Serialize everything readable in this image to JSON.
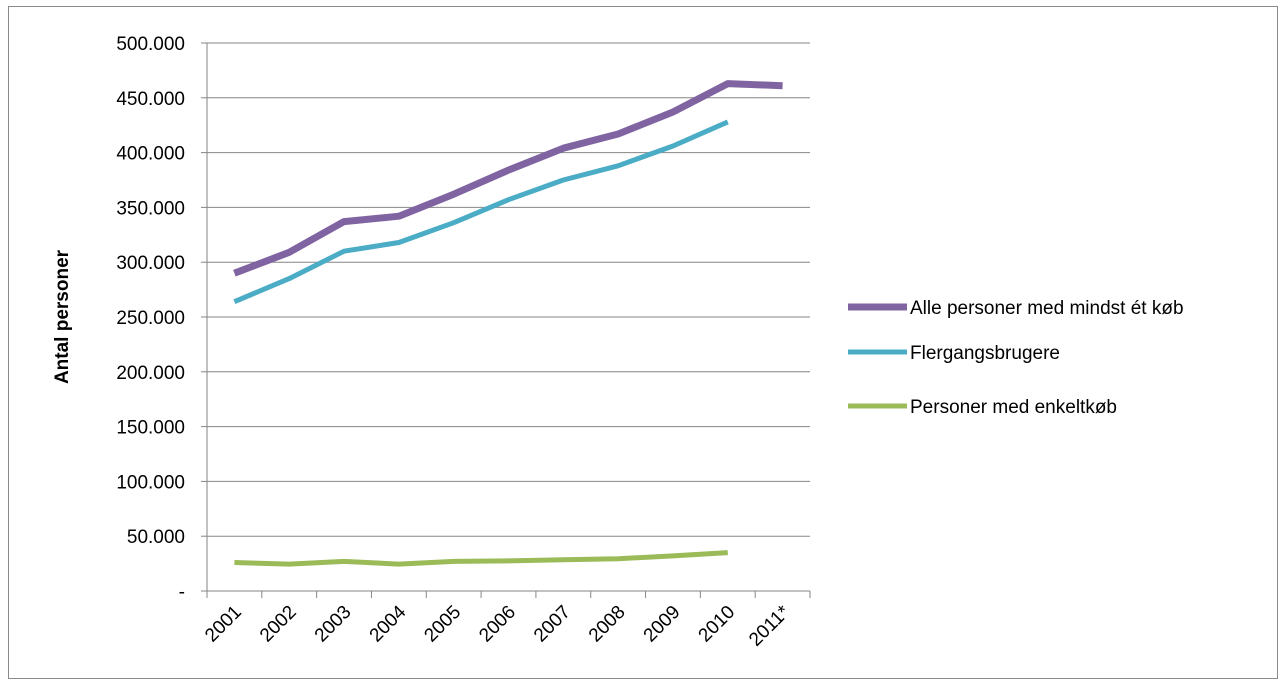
{
  "chart_data": {
    "type": "line",
    "title": "",
    "xlabel": "",
    "ylabel": "Antal personer",
    "categories": [
      "2001",
      "2002",
      "2003",
      "2004",
      "2005",
      "2006",
      "2007",
      "2008",
      "2009",
      "2010",
      "2011*"
    ],
    "ylim": [
      0,
      500000
    ],
    "yticks": [
      {
        "value": 0,
        "label": "-"
      },
      {
        "value": 50000,
        "label": "50.000"
      },
      {
        "value": 100000,
        "label": "100.000"
      },
      {
        "value": 150000,
        "label": "150.000"
      },
      {
        "value": 200000,
        "label": "200.000"
      },
      {
        "value": 250000,
        "label": "250.000"
      },
      {
        "value": 300000,
        "label": "300.000"
      },
      {
        "value": 350000,
        "label": "350.000"
      },
      {
        "value": 400000,
        "label": "400.000"
      },
      {
        "value": 450000,
        "label": "450.000"
      },
      {
        "value": 500000,
        "label": "500.000"
      }
    ],
    "grid": true,
    "legend_position": "right",
    "series": [
      {
        "name": "Alle personer med mindst ét køb",
        "color": "#8064a2",
        "values": [
          290000,
          309000,
          337000,
          342000,
          362000,
          384000,
          404000,
          417000,
          437000,
          463000,
          461000
        ]
      },
      {
        "name": "Flergangsbrugere",
        "color": "#4bacc6",
        "values": [
          264000,
          285000,
          310000,
          318000,
          336000,
          357000,
          375000,
          388000,
          406000,
          428000,
          null
        ]
      },
      {
        "name": "Personer med enkeltkøb",
        "color": "#9bbb59",
        "values": [
          26000,
          24500,
          27000,
          24500,
          27000,
          27500,
          28500,
          29500,
          32000,
          35000,
          null
        ]
      }
    ]
  }
}
